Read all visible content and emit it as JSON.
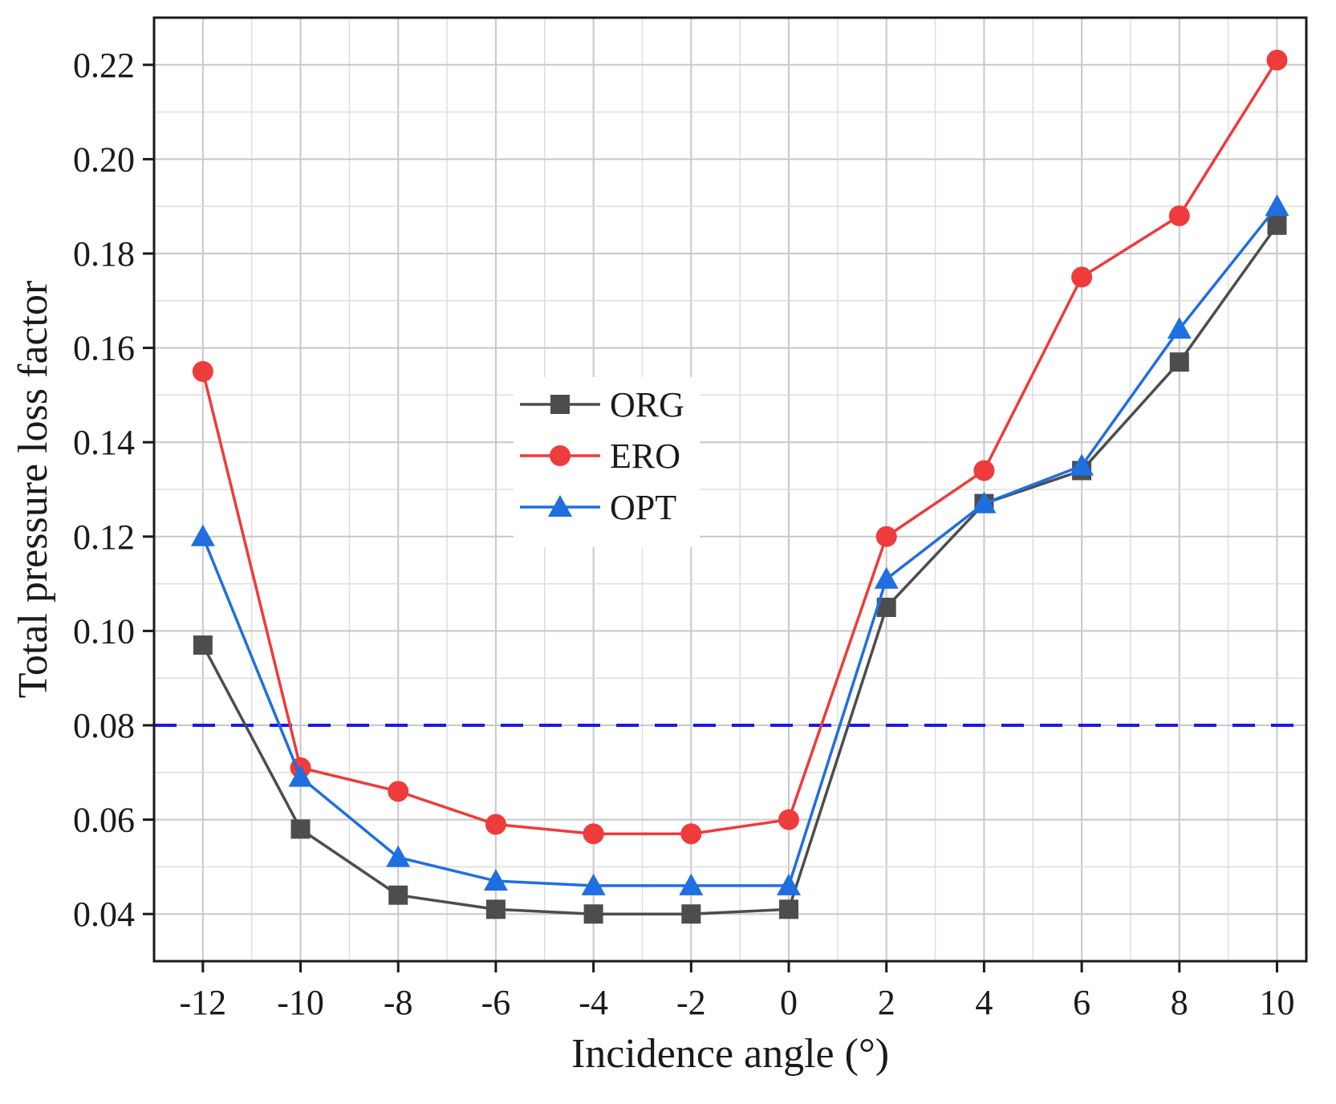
{
  "chart_data": {
    "type": "line",
    "title": "",
    "xlabel": "Incidence angle (°)",
    "ylabel": "Total pressure loss factor",
    "x": [
      -12,
      -10,
      -8,
      -6,
      -4,
      -2,
      0,
      2,
      4,
      6,
      8,
      10
    ],
    "x_tick_labels": [
      "-12",
      "-10",
      "-8",
      "-6",
      "-4",
      "-2",
      "0",
      "2",
      "4",
      "6",
      "8",
      "10"
    ],
    "xlim": [
      -13,
      10.6
    ],
    "ylim": [
      0.03,
      0.23
    ],
    "y_ticks": [
      0.04,
      0.06,
      0.08,
      0.1,
      0.12,
      0.14,
      0.16,
      0.18,
      0.2,
      0.22
    ],
    "y_tick_labels": [
      "0.04",
      "0.06",
      "0.08",
      "0.10",
      "0.12",
      "0.14",
      "0.16",
      "0.18",
      "0.20",
      "0.22"
    ],
    "grid": true,
    "legend_position": "center",
    "series": [
      {
        "name": "ORG",
        "color": "#4d4d4d",
        "marker": "square",
        "values": [
          0.097,
          0.058,
          0.044,
          0.041,
          0.04,
          0.04,
          0.041,
          0.105,
          0.127,
          0.134,
          0.157,
          0.186
        ]
      },
      {
        "name": "ERO",
        "color": "#ee3b3b",
        "marker": "circle",
        "values": [
          0.155,
          0.071,
          0.066,
          0.059,
          0.057,
          0.057,
          0.06,
          0.12,
          0.134,
          0.175,
          0.188,
          0.221
        ]
      },
      {
        "name": "OPT",
        "color": "#1f6fe0",
        "marker": "triangle",
        "values": [
          0.12,
          0.069,
          0.052,
          0.047,
          0.046,
          0.046,
          0.046,
          0.111,
          0.127,
          0.135,
          0.164,
          0.19
        ]
      }
    ],
    "reference_line": {
      "y": 0.08,
      "color": "#1a1aee",
      "style": "dashed"
    }
  }
}
